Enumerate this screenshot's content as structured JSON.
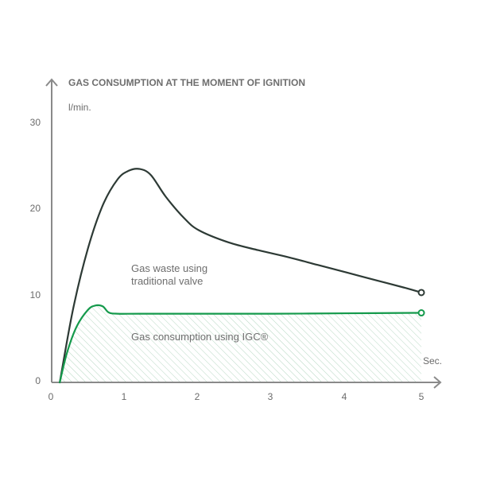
{
  "chart_data": {
    "type": "line",
    "title": "GAS CONSUMPTION AT THE MOMENT OF IGNITION",
    "ylabel": "l/min.",
    "xlabel": "Sec.",
    "xlim": [
      0,
      5
    ],
    "ylim": [
      0,
      30
    ],
    "x_ticks": [
      "0",
      "1",
      "2",
      "3",
      "4",
      "5"
    ],
    "y_ticks": [
      "0",
      "10",
      "20",
      "30"
    ],
    "grid": false,
    "series": [
      {
        "name_lines": [
          "Gas waste using",
          "traditional valve"
        ],
        "color": "#2d3a35",
        "x": [
          0.12,
          0.3,
          0.5,
          0.7,
          0.9,
          1.05,
          1.2,
          1.35,
          1.55,
          1.8,
          2.0,
          2.4,
          2.8,
          3.2,
          3.6,
          4.0,
          4.4,
          4.8,
          5.0
        ],
        "y": [
          0,
          8.5,
          15.5,
          20.5,
          23.5,
          24.5,
          24.7,
          24.0,
          21.5,
          19.0,
          17.6,
          16.2,
          15.3,
          14.5,
          13.6,
          12.7,
          11.8,
          10.9,
          10.4
        ]
      },
      {
        "name": "Gas consumption using IGC®",
        "color": "#159a4c",
        "fill": "hatched",
        "x": [
          0.12,
          0.22,
          0.35,
          0.5,
          0.6,
          0.7,
          0.78,
          0.9,
          1.2,
          2.0,
          3.0,
          4.0,
          5.0
        ],
        "y": [
          0,
          3.5,
          6.5,
          8.4,
          8.9,
          8.8,
          8.1,
          7.95,
          7.95,
          7.95,
          7.95,
          8.0,
          8.05
        ]
      }
    ]
  }
}
